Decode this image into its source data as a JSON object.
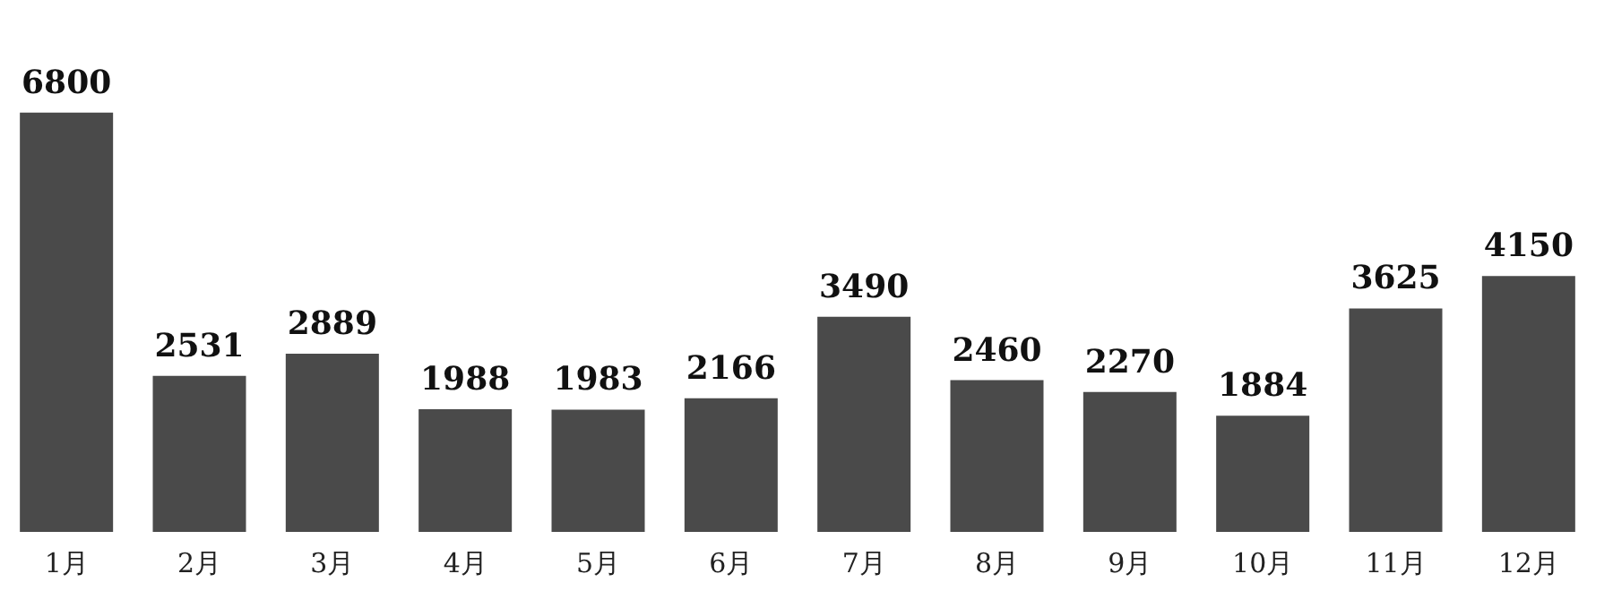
{
  "chart_data": {
    "type": "bar",
    "categories": [
      "1月",
      "2月",
      "3月",
      "4月",
      "5月",
      "6月",
      "7月",
      "8月",
      "9月",
      "10月",
      "11月",
      "12月"
    ],
    "values": [
      6800,
      2531,
      2889,
      1988,
      1983,
      2166,
      3490,
      2460,
      2270,
      1884,
      3625,
      4150
    ],
    "color": "#4a4a4a",
    "data_labels": true,
    "tick_labels": "x"
  }
}
